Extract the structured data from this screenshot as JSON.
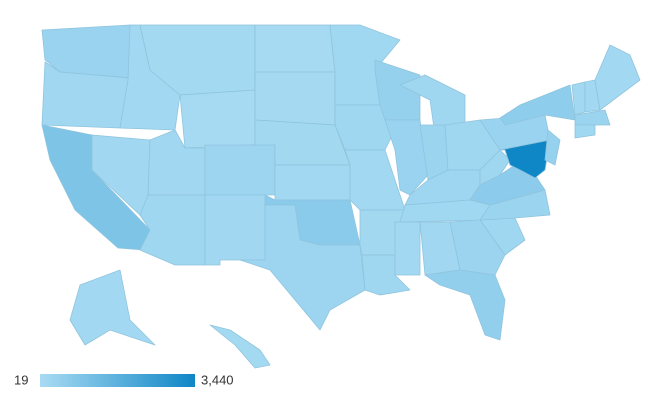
{
  "chart_data": {
    "type": "choropleth",
    "values": [
      350,
      180,
      950,
      160,
      150,
      110,
      60,
      160,
      220,
      260,
      170,
      70,
      80,
      140,
      150,
      700,
      260,
      200,
      230,
      150,
      140,
      230,
      450,
      330,
      230,
      300,
      220,
      250,
      190,
      130,
      170,
      290,
      500,
      220,
      300,
      650,
      220,
      330,
      600,
      3440,
      420,
      130,
      150,
      130,
      300,
      200,
      120,
      110
    ],
    "legend": {
      "min": 19,
      "max": {
        "value": 3440,
        "label": "3,440"
      }
    },
    "color_range": [
      "#a8dbf3",
      "#0f86c6"
    ]
  }
}
